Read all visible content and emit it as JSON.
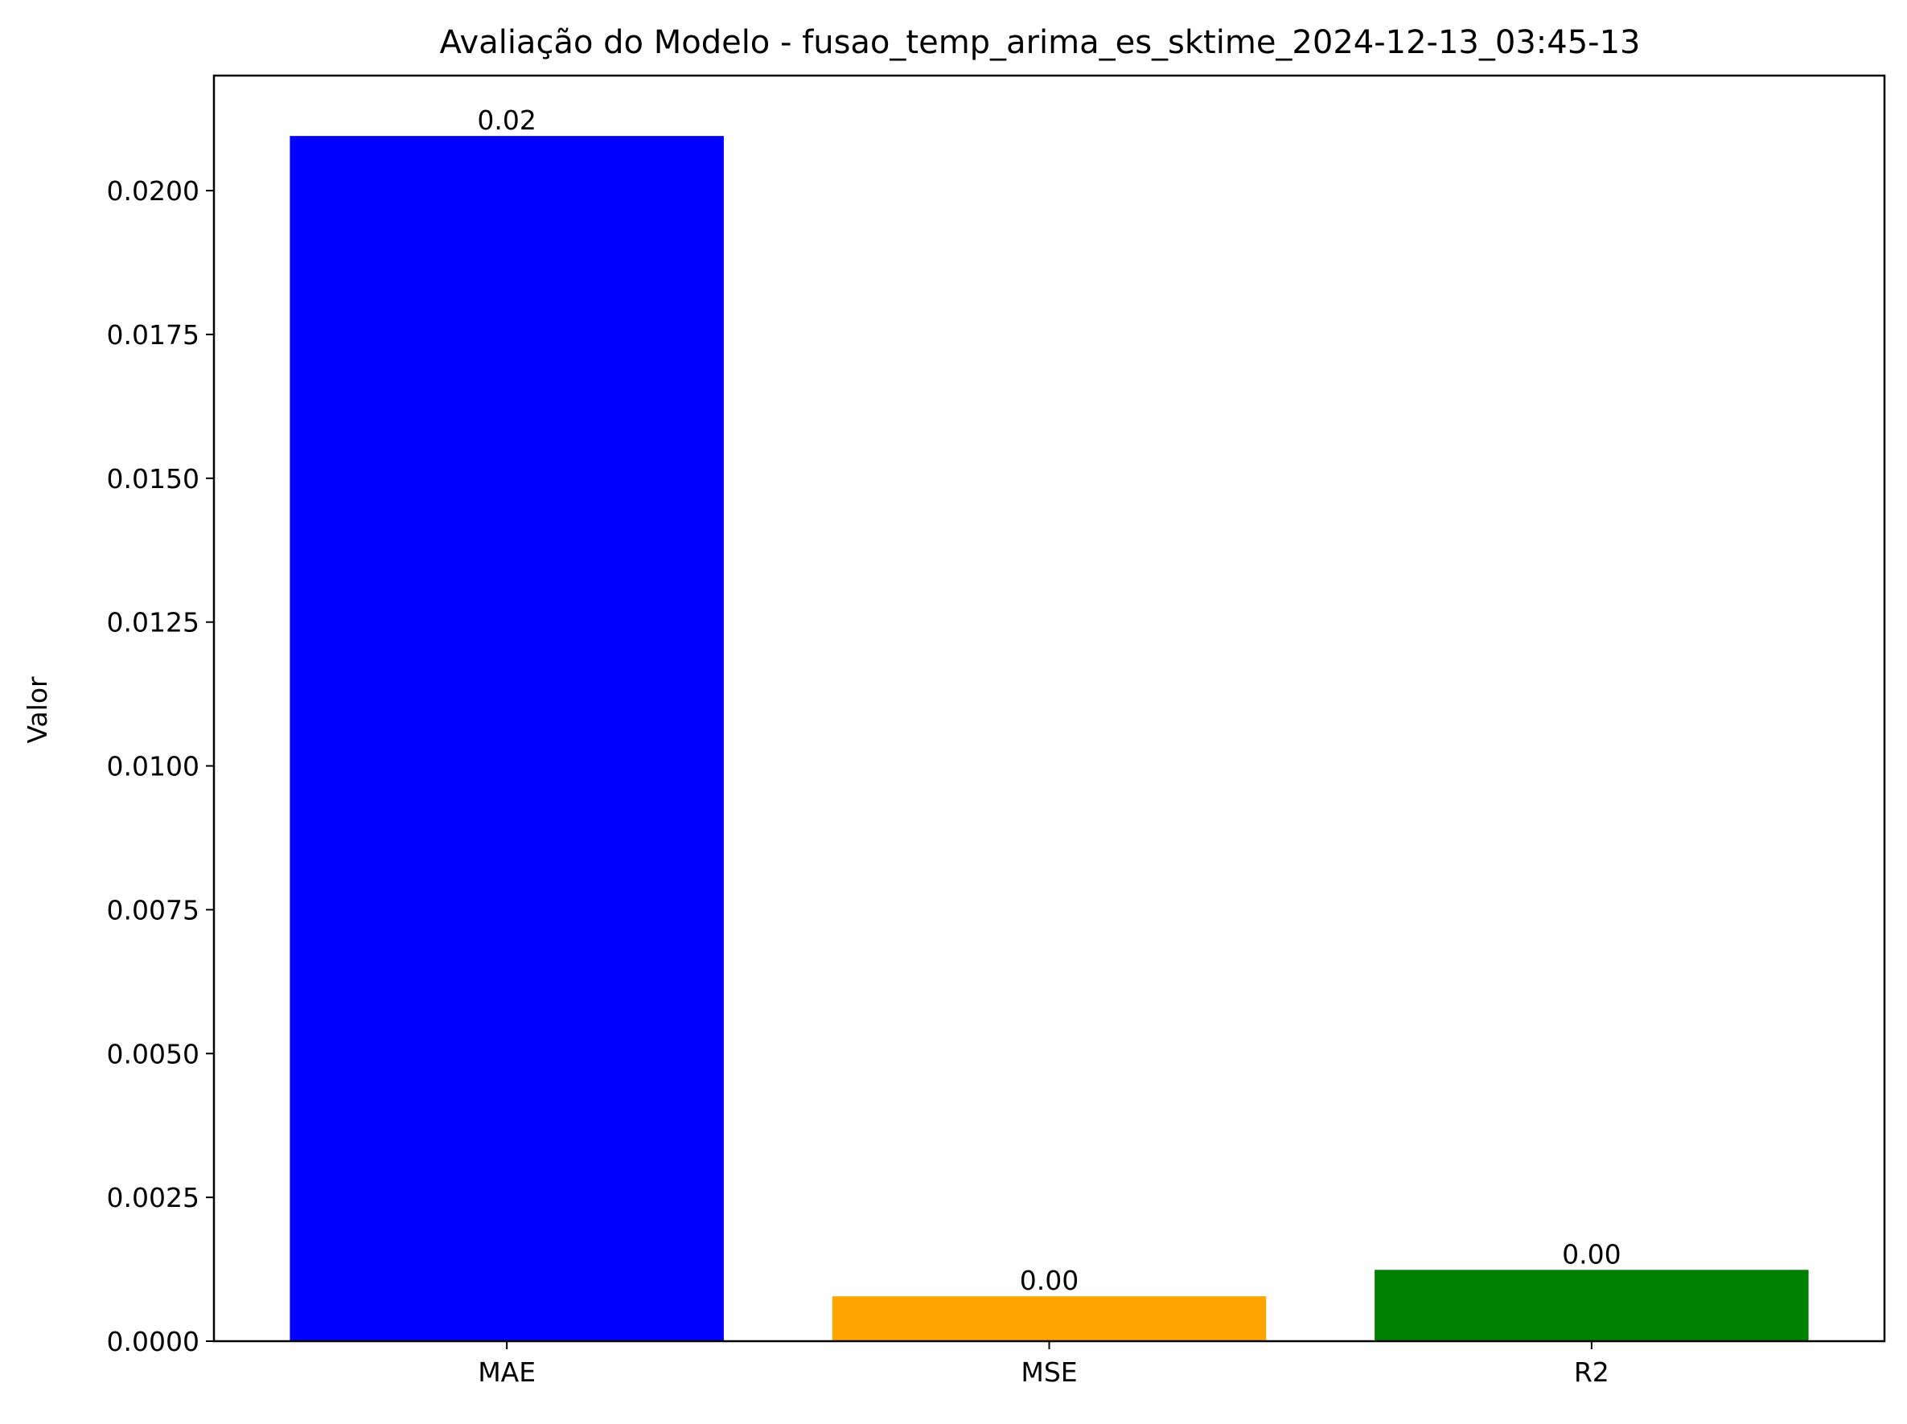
{
  "chart_data": {
    "type": "bar",
    "title": "Avaliação do Modelo - fusao_temp_arima_es_sktime_2024-12-13_03:45-13",
    "xlabel": "",
    "ylabel": "Valor",
    "categories": [
      "MAE",
      "MSE",
      "R2"
    ],
    "values": [
      0.02095,
      0.00078,
      0.00124
    ],
    "value_labels": [
      "0.02",
      "0.00",
      "0.00"
    ],
    "colors": [
      "#0000ff",
      "#ffa500",
      "#008000"
    ],
    "ylim": [
      0,
      0.022
    ],
    "yticks": [
      0.0,
      0.0025,
      0.005,
      0.0075,
      0.01,
      0.0125,
      0.015,
      0.0175,
      0.02
    ],
    "ytick_labels": [
      "0.0000",
      "0.0025",
      "0.0050",
      "0.0075",
      "0.0100",
      "0.0125",
      "0.0150",
      "0.0175",
      "0.0200"
    ],
    "grid": false,
    "legend": false
  }
}
